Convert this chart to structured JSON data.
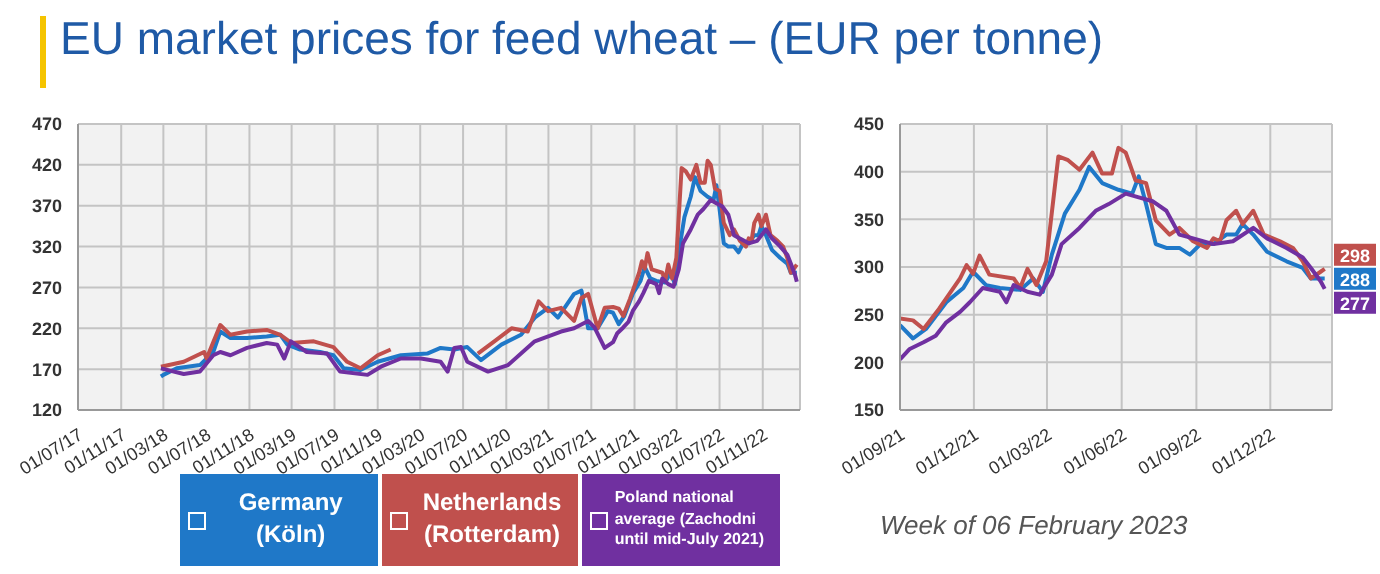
{
  "chart_data": [
    {
      "type": "line",
      "title": "EU market prices for feed wheat – (EUR per tonne)",
      "grid": true,
      "legend": "bottom",
      "xlim": [
        "2017-07-01",
        "2023-02-15"
      ],
      "xticks": [
        {
          "value": "2017-07-01",
          "label": "01/07/17"
        },
        {
          "value": "2017-11-01",
          "label": "01/11/17"
        },
        {
          "value": "2018-03-01",
          "label": "01/03/18"
        },
        {
          "value": "2018-07-01",
          "label": "01/07/18"
        },
        {
          "value": "2018-11-01",
          "label": "01/11/18"
        },
        {
          "value": "2019-03-01",
          "label": "01/03/19"
        },
        {
          "value": "2019-07-01",
          "label": "01/07/19"
        },
        {
          "value": "2019-11-01",
          "label": "01/11/19"
        },
        {
          "value": "2020-03-01",
          "label": "01/03/20"
        },
        {
          "value": "2020-07-01",
          "label": "01/07/20"
        },
        {
          "value": "2020-11-01",
          "label": "01/11/20"
        },
        {
          "value": "2021-03-01",
          "label": "01/03/21"
        },
        {
          "value": "2021-07-01",
          "label": "01/07/21"
        },
        {
          "value": "2021-11-01",
          "label": "01/11/21"
        },
        {
          "value": "2022-03-01",
          "label": "01/03/22"
        },
        {
          "value": "2022-07-01",
          "label": "01/07/22"
        },
        {
          "value": "2022-11-01",
          "label": "01/11/22"
        }
      ],
      "ylim": [
        120,
        470
      ],
      "yticks": [
        120,
        170,
        220,
        270,
        320,
        370,
        420,
        470
      ],
      "series": [
        {
          "name": "Germany (Köln)",
          "color": "#1f78c8",
          "x": [
            "2018-02-22",
            "2018-03-01",
            "2018-04-08",
            "2018-06-13",
            "2018-07-21",
            "2018-08-10",
            "2018-09-08",
            "2018-10-25",
            "2018-12-20",
            "2019-01-28",
            "2019-02-17",
            "2019-03-25",
            "2019-05-21",
            "2019-06-28",
            "2019-07-27",
            "2019-09-13",
            "2019-11-01",
            "2020-01-06",
            "2020-03-21",
            "2020-04-28",
            "2020-06-06",
            "2020-07-13",
            "2020-08-21",
            "2020-10-18",
            "2020-12-13",
            "2021-01-21",
            "2021-02-28",
            "2021-03-28",
            "2021-05-13",
            "2021-06-03",
            "2021-06-22",
            "2021-07-19",
            "2021-08-17",
            "2021-09-01",
            "2021-09-17",
            "2021-10-03",
            "2021-10-28",
            "2021-11-18",
            "2021-11-30",
            "2021-12-16",
            "2022-01-02",
            "2022-01-27",
            "2022-02-12",
            "2022-02-24",
            "2022-03-07",
            "2022-03-23",
            "2022-04-10",
            "2022-04-22",
            "2022-05-08",
            "2022-05-28",
            "2022-06-14",
            "2022-06-22",
            "2022-07-01",
            "2022-07-13",
            "2022-07-26",
            "2022-08-11",
            "2022-08-24",
            "2022-09-06",
            "2022-09-22",
            "2022-10-08",
            "2022-10-20",
            "2022-10-28",
            "2022-11-10",
            "2022-11-27",
            "2022-12-21",
            "2023-01-10",
            "2023-01-20",
            "2023-01-30",
            "2023-02-06"
          ],
          "values": [
            161,
            163,
            171,
            175,
            191,
            216,
            208,
            208,
            210,
            212,
            200,
            194,
            191,
            187,
            171,
            169,
            179,
            187,
            189,
            196,
            194,
            197,
            181,
            200,
            212,
            233,
            245,
            233,
            262,
            266,
            220,
            220,
            241,
            239,
            225,
            235,
            263,
            278,
            295,
            281,
            278,
            276,
            288,
            274,
            313,
            356,
            381,
            405,
            388,
            381,
            377,
            395,
            366,
            324,
            320,
            320,
            313,
            324,
            324,
            334,
            334,
            345,
            334,
            316,
            306,
            299,
            288,
            288,
            288
          ]
        },
        {
          "name": "Netherlands (Rotterdam)",
          "color": "#c0504d",
          "x": [
            "2018-02-22",
            "2018-04-28",
            "2018-06-25",
            "2018-07-02",
            "2018-08-10",
            "2018-09-08",
            "2018-10-25",
            "2018-12-20",
            "2019-01-28",
            "2019-03-01",
            "2019-05-03",
            "2019-06-28",
            "2019-08-06",
            "2019-09-13",
            "2019-11-01",
            "2019-12-08",
            "2020-01-01",
            "2020-08-12",
            "2020-09-28",
            "2020-11-16",
            "2021-01-01",
            "2021-02-01",
            "2021-02-28",
            "2021-04-06",
            "2021-05-13",
            "2021-06-03",
            "2021-06-22",
            "2021-07-19",
            "2021-08-08",
            "2021-09-01",
            "2021-09-17",
            "2021-09-30",
            "2021-10-19",
            "2021-11-14",
            "2021-11-22",
            "2021-11-30",
            "2021-12-08",
            "2021-12-20",
            "2022-01-19",
            "2022-01-27",
            "2022-02-05",
            "2022-02-16",
            "2022-02-28",
            "2022-03-15",
            "2022-03-27",
            "2022-04-10",
            "2022-04-26",
            "2022-05-08",
            "2022-05-20",
            "2022-05-28",
            "2022-06-06",
            "2022-06-18",
            "2022-07-01",
            "2022-07-13",
            "2022-07-30",
            "2022-08-11",
            "2022-08-28",
            "2022-09-14",
            "2022-09-22",
            "2022-09-30",
            "2022-10-08",
            "2022-10-20",
            "2022-10-28",
            "2022-11-10",
            "2022-11-23",
            "2022-12-13",
            "2022-12-29",
            "2023-01-10",
            "2023-01-20",
            "2023-02-01",
            "2023-02-06"
          ],
          "values": [
            173,
            179,
            191,
            183,
            224,
            212,
            216,
            218,
            212,
            202,
            204,
            197,
            179,
            171,
            187,
            194,
            null,
            189,
            204,
            220,
            216,
            253,
            241,
            245,
            229,
            257,
            262,
            220,
            245,
            246,
            244,
            235,
            256,
            288,
            302,
            293,
            312,
            292,
            288,
            278,
            298,
            281,
            306,
            416,
            412,
            402,
            420,
            398,
            398,
            425,
            420,
            391,
            388,
            349,
            334,
            341,
            327,
            320,
            330,
            327,
            349,
            359,
            345,
            359,
            334,
            327,
            320,
            306,
            288,
            295,
            298
          ]
        },
        {
          "name": "Poland national average (Zachodni until mid-July 2021)",
          "color": "#7030a0",
          "x": [
            "2018-02-22",
            "2018-04-28",
            "2018-06-13",
            "2018-07-21",
            "2018-08-10",
            "2018-09-08",
            "2018-10-25",
            "2018-12-20",
            "2019-01-19",
            "2019-02-08",
            "2019-02-27",
            "2019-04-13",
            "2019-06-10",
            "2019-07-17",
            "2019-10-03",
            "2019-11-10",
            "2020-01-06",
            "2020-03-03",
            "2020-04-28",
            "2020-05-18",
            "2020-06-06",
            "2020-06-25",
            "2020-07-13",
            "2020-09-10",
            "2020-11-06",
            "2021-01-21",
            "2021-04-06",
            "2021-05-13",
            "2021-06-22",
            "2021-07-10",
            "2021-08-08",
            "2021-09-01",
            "2021-09-13",
            "2021-09-30",
            "2021-10-15",
            "2021-10-28",
            "2021-11-14",
            "2021-11-26",
            "2021-12-12",
            "2022-01-02",
            "2022-01-10",
            "2022-01-19",
            "2022-02-05",
            "2022-02-20",
            "2022-03-07",
            "2022-03-19",
            "2022-04-10",
            "2022-04-30",
            "2022-05-16",
            "2022-06-06",
            "2022-06-22",
            "2022-07-09",
            "2022-07-26",
            "2022-08-11",
            "2022-08-28",
            "2022-09-22",
            "2022-10-16",
            "2022-11-10",
            "2022-11-27",
            "2022-12-21",
            "2023-01-10",
            "2023-01-20",
            "2023-02-01",
            "2023-02-06"
          ],
          "values": [
            171,
            164,
            167,
            187,
            191,
            187,
            196,
            202,
            200,
            183,
            204,
            191,
            189,
            167,
            163,
            173,
            183,
            183,
            179,
            167,
            196,
            197,
            179,
            167,
            175,
            204,
            216,
            220,
            229,
            221,
            196,
            203,
            214,
            221,
            228,
            242,
            253,
            263,
            278,
            274,
            263,
            281,
            274,
            271,
            292,
            324,
            341,
            359,
            366,
            377,
            373,
            369,
            359,
            334,
            330,
            324,
            327,
            341,
            330,
            320,
            310,
            299,
            285,
            277
          ]
        }
      ]
    },
    {
      "type": "line",
      "grid": true,
      "annotations": [
        "Week of 06 February 2023"
      ],
      "xlim": [
        "2021-09-01",
        "2023-02-15"
      ],
      "xticks": [
        {
          "value": "2021-09-01",
          "label": "01/09/21"
        },
        {
          "value": "2021-12-01",
          "label": "01/12/21"
        },
        {
          "value": "2022-03-01",
          "label": "01/03/22"
        },
        {
          "value": "2022-06-01",
          "label": "01/06/22"
        },
        {
          "value": "2022-09-01",
          "label": "01/09/22"
        },
        {
          "value": "2022-12-01",
          "label": "01/12/22"
        }
      ],
      "ylim": [
        150,
        450
      ],
      "yticks": [
        150,
        200,
        250,
        300,
        350,
        400,
        450
      ],
      "series": [
        {
          "color": "#1f78c8",
          "x": [
            "2021-09-01",
            "2021-09-17",
            "2021-10-03",
            "2021-10-28",
            "2021-11-18",
            "2021-11-30",
            "2021-12-16",
            "2022-01-02",
            "2022-01-27",
            "2022-02-12",
            "2022-02-24",
            "2022-03-07",
            "2022-03-23",
            "2022-04-10",
            "2022-04-22",
            "2022-05-08",
            "2022-05-28",
            "2022-06-14",
            "2022-06-22",
            "2022-07-01",
            "2022-07-13",
            "2022-07-26",
            "2022-08-11",
            "2022-08-24",
            "2022-09-06",
            "2022-09-22",
            "2022-10-08",
            "2022-10-20",
            "2022-10-28",
            "2022-11-10",
            "2022-11-27",
            "2022-12-21",
            "2023-01-10",
            "2023-01-20",
            "2023-01-30",
            "2023-02-06"
          ],
          "values": [
            239,
            225,
            235,
            263,
            278,
            295,
            281,
            278,
            276,
            288,
            274,
            313,
            356,
            381,
            405,
            388,
            381,
            377,
            395,
            366,
            324,
            320,
            320,
            313,
            324,
            324,
            334,
            334,
            345,
            334,
            316,
            306,
            299,
            288,
            288,
            288
          ],
          "value_labels": [
            null,
            null,
            null,
            null,
            null,
            null,
            null,
            null,
            null,
            null,
            null,
            null,
            null,
            null,
            null,
            null,
            null,
            null,
            null,
            null,
            null,
            null,
            null,
            null,
            null,
            null,
            null,
            null,
            null,
            null,
            null,
            null,
            null,
            null,
            null,
            "288"
          ]
        },
        {
          "color": "#c0504d",
          "x": [
            "2021-09-01",
            "2021-09-17",
            "2021-09-30",
            "2021-10-19",
            "2021-11-14",
            "2021-11-22",
            "2021-11-30",
            "2021-12-08",
            "2021-12-20",
            "2022-01-19",
            "2022-01-27",
            "2022-02-05",
            "2022-02-16",
            "2022-02-28",
            "2022-03-15",
            "2022-03-27",
            "2022-04-10",
            "2022-04-26",
            "2022-05-08",
            "2022-05-20",
            "2022-05-28",
            "2022-06-06",
            "2022-06-18",
            "2022-07-01",
            "2022-07-13",
            "2022-07-30",
            "2022-08-11",
            "2022-08-28",
            "2022-09-14",
            "2022-09-22",
            "2022-09-30",
            "2022-10-08",
            "2022-10-20",
            "2022-10-28",
            "2022-11-10",
            "2022-11-23",
            "2022-12-13",
            "2022-12-29",
            "2023-01-10",
            "2023-01-20",
            "2023-02-01",
            "2023-02-06"
          ],
          "values": [
            246,
            244,
            235,
            256,
            288,
            302,
            293,
            312,
            292,
            288,
            278,
            298,
            281,
            306,
            416,
            412,
            402,
            420,
            398,
            398,
            425,
            420,
            391,
            388,
            349,
            334,
            341,
            327,
            320,
            330,
            327,
            349,
            359,
            345,
            359,
            334,
            327,
            320,
            306,
            288,
            295,
            298
          ],
          "value_labels": [
            null,
            null,
            null,
            null,
            null,
            null,
            null,
            null,
            null,
            null,
            null,
            null,
            null,
            null,
            null,
            null,
            null,
            null,
            null,
            null,
            null,
            null,
            null,
            null,
            null,
            null,
            null,
            null,
            null,
            null,
            null,
            null,
            null,
            null,
            null,
            null,
            null,
            null,
            null,
            null,
            null,
            "298"
          ]
        },
        {
          "color": "#7030a0",
          "x": [
            "2021-09-01",
            "2021-09-13",
            "2021-09-30",
            "2021-10-15",
            "2021-10-28",
            "2021-11-14",
            "2021-11-26",
            "2021-12-12",
            "2022-01-02",
            "2022-01-10",
            "2022-01-19",
            "2022-02-05",
            "2022-02-20",
            "2022-03-07",
            "2022-03-19",
            "2022-04-10",
            "2022-04-30",
            "2022-05-16",
            "2022-06-06",
            "2022-06-22",
            "2022-07-09",
            "2022-07-26",
            "2022-08-11",
            "2022-08-28",
            "2022-09-22",
            "2022-10-16",
            "2022-11-10",
            "2022-11-27",
            "2022-12-21",
            "2023-01-10",
            "2023-01-20",
            "2023-02-01",
            "2023-02-06"
          ],
          "values": [
            203,
            214,
            221,
            228,
            242,
            253,
            263,
            278,
            274,
            263,
            281,
            274,
            271,
            292,
            324,
            341,
            359,
            366,
            377,
            373,
            369,
            359,
            334,
            330,
            324,
            327,
            341,
            330,
            320,
            310,
            299,
            285,
            277
          ],
          "value_labels": [
            null,
            null,
            null,
            null,
            null,
            null,
            null,
            null,
            null,
            null,
            null,
            null,
            null,
            null,
            null,
            null,
            null,
            null,
            null,
            null,
            null,
            null,
            null,
            null,
            null,
            null,
            null,
            null,
            null,
            null,
            null,
            null,
            "277"
          ]
        }
      ]
    }
  ]
}
